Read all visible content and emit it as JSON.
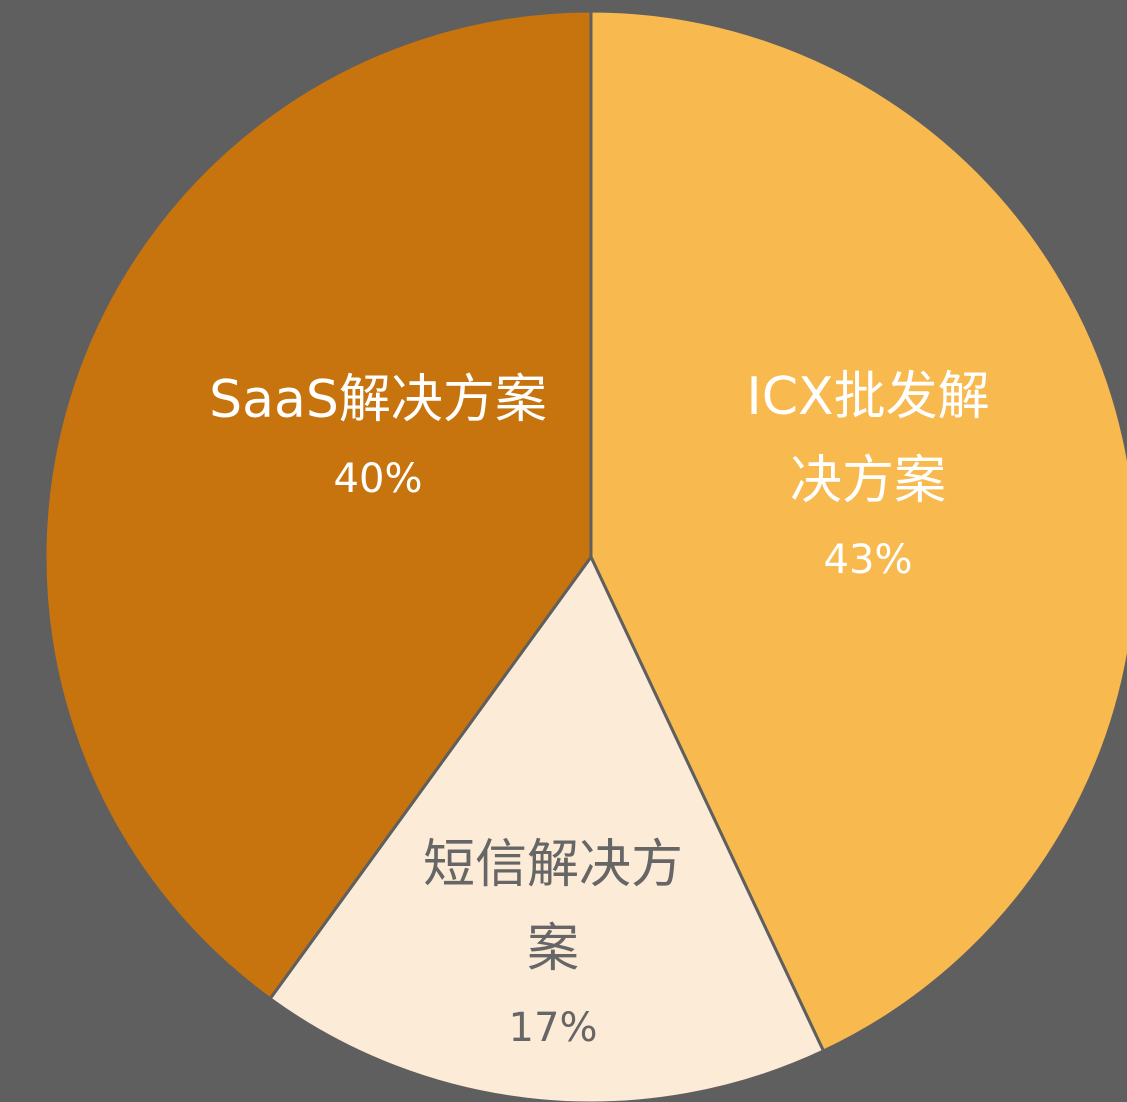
{
  "chart_data": {
    "type": "pie",
    "categories": [
      "ICX批发解决方案",
      "短信解决方案",
      "SaaS解决方案"
    ],
    "values": [
      43,
      17,
      40
    ],
    "value_labels": [
      "43%",
      "17%",
      "40%"
    ],
    "colors": [
      "#F8B94F",
      "#FCEBD6",
      "#C8740E"
    ]
  }
}
